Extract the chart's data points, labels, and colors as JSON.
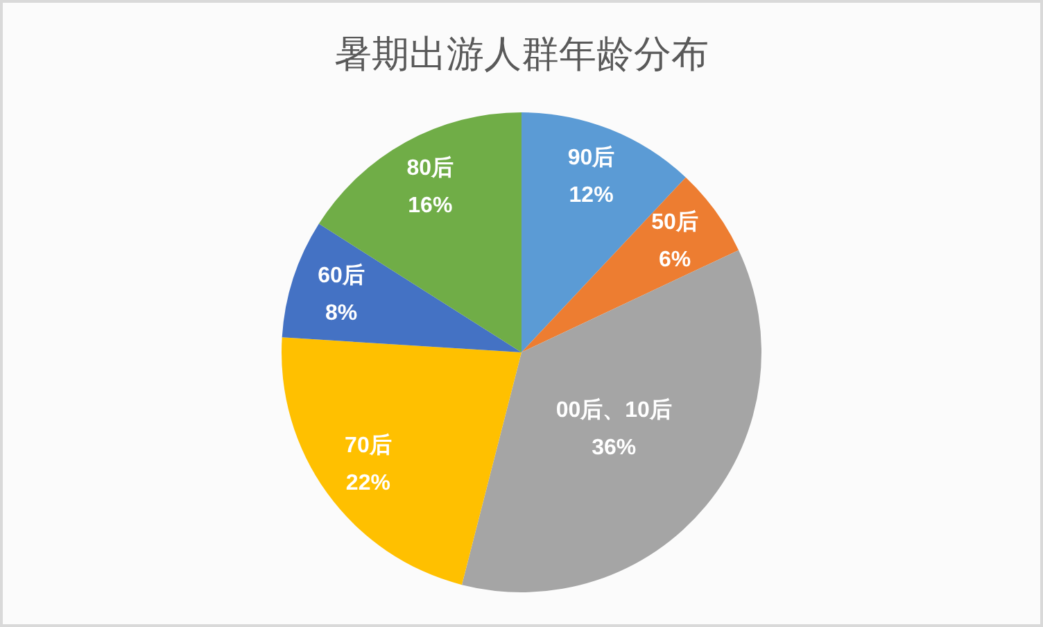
{
  "chart_data": {
    "type": "pie",
    "title": "暑期出游人群年龄分布",
    "categories": [
      "90后",
      "50后",
      "00后、10后",
      "70后",
      "60后",
      "80后"
    ],
    "values": [
      12,
      6,
      36,
      22,
      8,
      16
    ],
    "colors": [
      "#5b9bd5",
      "#ed7d31",
      "#a5a5a5",
      "#ffc000",
      "#4472c4",
      "#70ad47"
    ],
    "value_labels": [
      "12%",
      "6%",
      "36%",
      "22%",
      "8%",
      "16%"
    ]
  }
}
